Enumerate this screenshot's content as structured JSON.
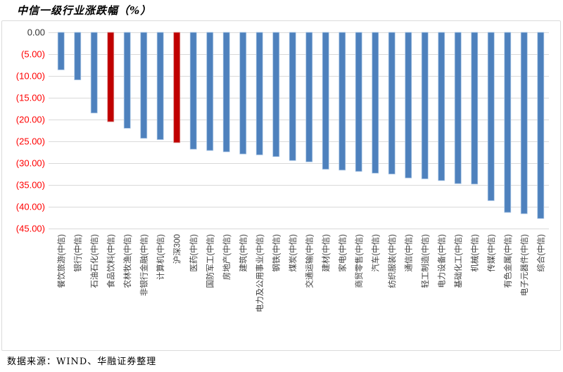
{
  "title": "中信一级行业涨跌幅（%）",
  "source_note": "数据来源：WIND、华融证券整理",
  "colors": {
    "bar_default": "#4E81BD",
    "bar_default_edge": "#A9C5E5",
    "bar_highlight": "#C00000",
    "bar_highlight_edge": "#DA9694",
    "gridline": "#D9D9D9",
    "frame_border": "#DBDBDB",
    "y_label_zero": "#333333",
    "y_label_negative": "#FF0000",
    "category_label": "#3F3F3F"
  },
  "chart_data": {
    "type": "bar",
    "title": "中信一级行业涨跌幅（%）",
    "xlabel": "",
    "ylabel": "",
    "ylim": [
      -45,
      0
    ],
    "y_step": 5,
    "grid": true,
    "legend": false,
    "y_tick_labels": [
      "0.00",
      "(5.00)",
      "(10.00)",
      "(15.00)",
      "(20.00)",
      "(25.00)",
      "(30.00)",
      "(35.00)",
      "(40.00)",
      "(45.00)"
    ],
    "categories": [
      "餐饮旅游(中信)",
      "银行(中信)",
      "石油石化(中信)",
      "食品饮料(中信)",
      "农林牧渔(中信)",
      "非银行金融(中信)",
      "计算机(中信)",
      "沪深300",
      "医药(中信)",
      "国防军工(中信)",
      "房地产(中信)",
      "建筑(中信)",
      "电力及公用事业(中信)",
      "钢铁(中信)",
      "煤炭(中信)",
      "交通运输(中信)",
      "建材(中信)",
      "家电(中信)",
      "商贸零售(中信)",
      "汽车(中信)",
      "纺织服装(中信)",
      "通信(中信)",
      "轻工制造(中信)",
      "电力设备(中信)",
      "基础化工(中信)",
      "机械(中信)",
      "传媒(中信)",
      "有色金属(中信)",
      "电子元器件(中信)",
      "综合(中信)"
    ],
    "values": [
      -8.6,
      -10.9,
      -18.5,
      -20.5,
      -22.0,
      -24.3,
      -24.6,
      -25.3,
      -26.8,
      -27.1,
      -27.4,
      -27.9,
      -28.1,
      -28.5,
      -29.4,
      -29.7,
      -31.4,
      -31.6,
      -31.9,
      -32.3,
      -32.5,
      -33.4,
      -33.6,
      -34.0,
      -34.7,
      -34.8,
      -38.6,
      -41.3,
      -41.6,
      -42.7
    ],
    "highlight_indices": [
      3,
      7
    ]
  }
}
